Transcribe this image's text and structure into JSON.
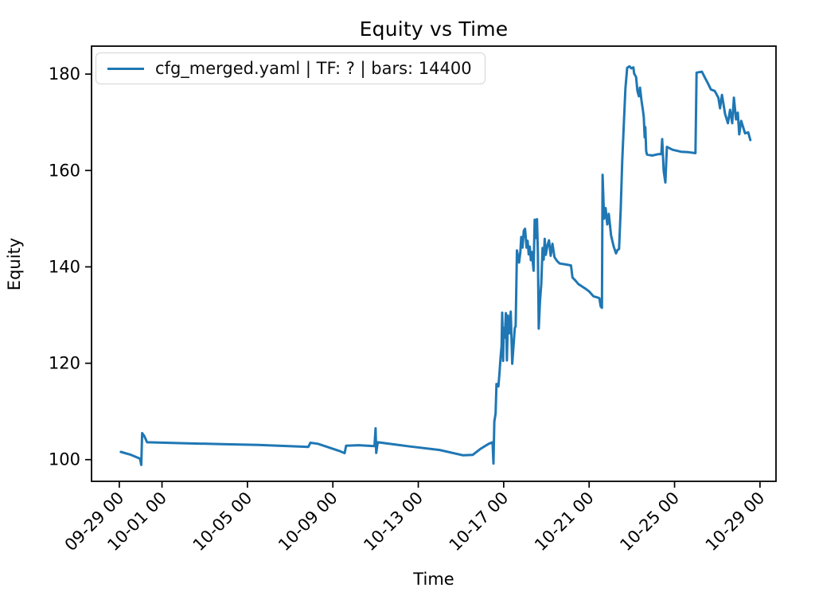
{
  "figure": {
    "title": "Equity vs Time",
    "xlabel": "Time",
    "ylabel": "Equity"
  },
  "legend": {
    "label": "cfg_merged.yaml | TF: ? | bars: 14400",
    "line_color": "#1f77b4"
  },
  "chart_data": {
    "type": "line",
    "title": "Equity vs Time",
    "xlabel": "Time",
    "ylabel": "Equity",
    "grid": false,
    "legend_position": "upper left",
    "x_unit": "days since 09-29 00:00",
    "xlim": [
      -1.3,
      30.75
    ],
    "ylim": [
      95.5,
      185.8
    ],
    "y_ticks": [
      100,
      120,
      140,
      160,
      180
    ],
    "x_ticks": [
      {
        "day": 0,
        "label": "09-29 00"
      },
      {
        "day": 2,
        "label": "10-01 00"
      },
      {
        "day": 6,
        "label": "10-05 00"
      },
      {
        "day": 10,
        "label": "10-09 00"
      },
      {
        "day": 14,
        "label": "10-13 00"
      },
      {
        "day": 18,
        "label": "10-17 00"
      },
      {
        "day": 22,
        "label": "10-21 00"
      },
      {
        "day": 26,
        "label": "10-25 00"
      },
      {
        "day": 30,
        "label": "10-29 00"
      }
    ],
    "series": [
      {
        "name": "cfg_merged.yaml | TF: ? | bars: 14400",
        "color": "#1f77b4",
        "line_width": 3,
        "points": [
          [
            0.07,
            101.6
          ],
          [
            0.55,
            101.0
          ],
          [
            0.97,
            100.2
          ],
          [
            1.03,
            98.9
          ],
          [
            1.07,
            105.5
          ],
          [
            1.17,
            104.9
          ],
          [
            1.3,
            103.6
          ],
          [
            3.0,
            103.4
          ],
          [
            5.0,
            103.2
          ],
          [
            6.5,
            103.05
          ],
          [
            8.85,
            102.65
          ],
          [
            8.95,
            103.5
          ],
          [
            9.3,
            103.3
          ],
          [
            10.3,
            101.8
          ],
          [
            10.55,
            101.35
          ],
          [
            10.62,
            102.9
          ],
          [
            11.2,
            103.0
          ],
          [
            11.95,
            102.8
          ],
          [
            12.0,
            106.5
          ],
          [
            12.03,
            101.4
          ],
          [
            12.1,
            103.6
          ],
          [
            13.5,
            102.8
          ],
          [
            15.0,
            102.0
          ],
          [
            16.1,
            100.9
          ],
          [
            16.55,
            101.0
          ],
          [
            16.9,
            102.2
          ],
          [
            17.3,
            103.3
          ],
          [
            17.48,
            103.6
          ],
          [
            17.52,
            99.2
          ],
          [
            17.56,
            107.9
          ],
          [
            17.62,
            109.6
          ],
          [
            17.66,
            115.7
          ],
          [
            17.75,
            115.2
          ],
          [
            17.8,
            117.8
          ],
          [
            17.85,
            121.1
          ],
          [
            17.9,
            123.6
          ],
          [
            17.93,
            130.5
          ],
          [
            17.97,
            120.5
          ],
          [
            18.0,
            127.3
          ],
          [
            18.05,
            125.3
          ],
          [
            18.1,
            130.4
          ],
          [
            18.15,
            120.6
          ],
          [
            18.2,
            129.9
          ],
          [
            18.27,
            126.2
          ],
          [
            18.33,
            130.7
          ],
          [
            18.4,
            119.9
          ],
          [
            18.48,
            125.0
          ],
          [
            18.52,
            127.3
          ],
          [
            18.56,
            127.7
          ],
          [
            18.62,
            143.4
          ],
          [
            18.72,
            140.9
          ],
          [
            18.78,
            143.1
          ],
          [
            18.82,
            146.2
          ],
          [
            18.88,
            144.0
          ],
          [
            18.94,
            147.5
          ],
          [
            19.0,
            147.9
          ],
          [
            19.07,
            144.0
          ],
          [
            19.12,
            145.4
          ],
          [
            19.17,
            142.6
          ],
          [
            19.22,
            144.2
          ],
          [
            19.27,
            141.4
          ],
          [
            19.32,
            143.1
          ],
          [
            19.4,
            139.2
          ],
          [
            19.45,
            149.8
          ],
          [
            19.5,
            146.0
          ],
          [
            19.56,
            149.9
          ],
          [
            19.6,
            143.0
          ],
          [
            19.64,
            127.2
          ],
          [
            19.7,
            133.0
          ],
          [
            19.76,
            136.5
          ],
          [
            19.82,
            143.9
          ],
          [
            19.87,
            141.5
          ],
          [
            19.92,
            145.8
          ],
          [
            19.97,
            142.5
          ],
          [
            20.05,
            144.5
          ],
          [
            20.12,
            145.5
          ],
          [
            20.2,
            142.3
          ],
          [
            20.28,
            144.8
          ],
          [
            20.38,
            142.0
          ],
          [
            20.5,
            141.2
          ],
          [
            20.62,
            140.7
          ],
          [
            20.9,
            140.5
          ],
          [
            21.15,
            140.3
          ],
          [
            21.22,
            137.8
          ],
          [
            21.35,
            137.2
          ],
          [
            21.5,
            136.4
          ],
          [
            21.65,
            136.0
          ],
          [
            21.85,
            135.4
          ],
          [
            22.0,
            134.9
          ],
          [
            22.2,
            133.9
          ],
          [
            22.35,
            133.7
          ],
          [
            22.48,
            133.5
          ],
          [
            22.54,
            131.8
          ],
          [
            22.6,
            131.5
          ],
          [
            22.63,
            159.1
          ],
          [
            22.7,
            150.0
          ],
          [
            22.77,
            152.2
          ],
          [
            22.85,
            148.8
          ],
          [
            22.92,
            151.0
          ],
          [
            23.03,
            146.5
          ],
          [
            23.15,
            144.2
          ],
          [
            23.26,
            142.8
          ],
          [
            23.33,
            143.5
          ],
          [
            23.4,
            143.7
          ],
          [
            23.48,
            152.0
          ],
          [
            23.55,
            162.0
          ],
          [
            23.63,
            170.0
          ],
          [
            23.7,
            177.0
          ],
          [
            23.78,
            181.3
          ],
          [
            23.89,
            181.6
          ],
          [
            23.98,
            181.2
          ],
          [
            24.07,
            181.4
          ],
          [
            24.11,
            180.1
          ],
          [
            24.2,
            179.4
          ],
          [
            24.26,
            176.5
          ],
          [
            24.33,
            175.4
          ],
          [
            24.38,
            177.2
          ],
          [
            24.45,
            174.5
          ],
          [
            24.52,
            172.5
          ],
          [
            24.56,
            171.0
          ],
          [
            24.6,
            166.9
          ],
          [
            24.63,
            169.0
          ],
          [
            24.67,
            164.0
          ],
          [
            24.71,
            163.3
          ],
          [
            24.95,
            163.1
          ],
          [
            25.25,
            163.4
          ],
          [
            25.38,
            163.4
          ],
          [
            25.42,
            166.5
          ],
          [
            25.49,
            159.9
          ],
          [
            25.57,
            157.5
          ],
          [
            25.64,
            164.9
          ],
          [
            25.9,
            164.3
          ],
          [
            26.3,
            163.9
          ],
          [
            26.65,
            163.8
          ],
          [
            26.98,
            163.6
          ],
          [
            27.03,
            180.3
          ],
          [
            27.28,
            180.5
          ],
          [
            27.42,
            179.3
          ],
          [
            27.57,
            178.0
          ],
          [
            27.7,
            176.8
          ],
          [
            27.88,
            176.5
          ],
          [
            28.05,
            175.1
          ],
          [
            28.13,
            172.9
          ],
          [
            28.22,
            175.7
          ],
          [
            28.3,
            173.5
          ],
          [
            28.36,
            171.8
          ],
          [
            28.5,
            169.8
          ],
          [
            28.6,
            172.6
          ],
          [
            28.7,
            169.8
          ],
          [
            28.78,
            175.1
          ],
          [
            28.88,
            170.6
          ],
          [
            28.96,
            172.0
          ],
          [
            29.03,
            167.5
          ],
          [
            29.12,
            170.3
          ],
          [
            29.3,
            167.7
          ],
          [
            29.45,
            167.9
          ],
          [
            29.55,
            166.3
          ]
        ]
      }
    ]
  }
}
